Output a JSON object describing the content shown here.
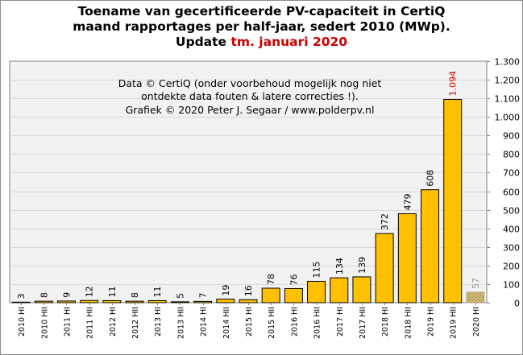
{
  "title": {
    "line1": "Toename van gecertificeerde PV-capaciteit in CertiQ",
    "line2": "maand rapportages per half-jaar, sedert 2010 (MWp).",
    "line3_prefix": "Update ",
    "line3_highlight": "tm. januari 2020"
  },
  "annotation": {
    "line1": "Data © CertiQ (onder voorbehoud mogelijk  nog niet",
    "line2": "ontdekte data fouten & latere correcties !).",
    "line3": "Grafiek  © 2020 Peter J. Segaar / www.polderpv.nl"
  },
  "colors": {
    "bar": "#FFC000",
    "bar_partial": "#C8A850",
    "highlight_label": "#CC0000",
    "partial_label": "#999999",
    "plot_background": "#F2F2F2",
    "grid": "#D9D9D9"
  },
  "chart_data": {
    "type": "bar",
    "categories": [
      "2010 HI",
      "2010 HII",
      "2011 HI",
      "2011 HII",
      "2012 HI",
      "2012 HII",
      "2013 HI",
      "2013 HII",
      "2014 HI",
      "2014 HII",
      "2015 HI",
      "2015 HII",
      "2016 HI",
      "2016 HII",
      "2017 HI",
      "2017 HII",
      "2018 HI",
      "2018 HII",
      "2019 HI",
      "2019 HII",
      "2020 HI"
    ],
    "values": [
      3,
      8,
      9,
      12,
      11,
      8,
      11,
      5,
      7,
      19,
      16,
      78,
      76,
      115,
      134,
      139,
      372,
      479,
      608,
      1094,
      57
    ],
    "value_labels": [
      "3",
      "8",
      "9",
      "12",
      "11",
      "8",
      "11",
      "5",
      "7",
      "19",
      "16",
      "78",
      "76",
      "115",
      "134",
      "139",
      "372",
      "479",
      "608",
      "1.094",
      "57"
    ],
    "highlighted_index": 19,
    "partial_index": 20,
    "ylim": [
      0,
      1300
    ],
    "yticks": [
      0,
      100,
      200,
      300,
      400,
      500,
      600,
      700,
      800,
      900,
      1000,
      1100,
      1200,
      1300
    ],
    "ytick_labels": [
      "0",
      "100",
      "200",
      "300",
      "400",
      "500",
      "600",
      "700",
      "800",
      "900",
      "1.000",
      "1.100",
      "1.200",
      "1.300"
    ],
    "y_axis_side": "right",
    "grid": true,
    "xlabel": "",
    "ylabel": ""
  }
}
